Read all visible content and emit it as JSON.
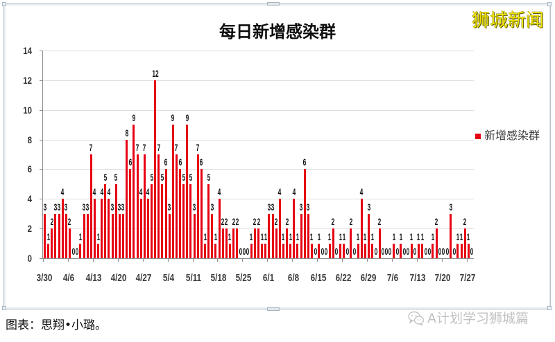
{
  "header": {
    "title": "每日新增感染群",
    "brand": "狮城新闻"
  },
  "legend": {
    "label": "新增感染群",
    "swatch_color": "#e60012"
  },
  "footer": {
    "credit": "图表：思翔•小璐。",
    "watermark": "A计划学习狮城篇",
    "watermark_icon": "wechat-icon"
  },
  "colors": {
    "bar": "#e60012",
    "brand_text": "#efe200",
    "gridline": "#dedede"
  },
  "chart_data": {
    "type": "bar",
    "title": "每日新增感染群",
    "xlabel": "",
    "ylabel": "",
    "ylim": [
      0,
      14
    ],
    "yticks": [
      0,
      2,
      4,
      6,
      8,
      10,
      12,
      14
    ],
    "grid": "horizontal",
    "legend_position": "right",
    "legend": [
      "新增感染群"
    ],
    "color": "#e60012",
    "data_labels": true,
    "xtick_interval": 7,
    "xtick_labels": [
      "3/30",
      "4/6",
      "4/13",
      "4/20",
      "4/27",
      "5/4",
      "5/11",
      "5/18",
      "5/25",
      "6/1",
      "6/8",
      "6/15",
      "6/22",
      "6/29",
      "7/6",
      "7/13",
      "7/20",
      "7/27"
    ],
    "categories": [
      "3/30",
      "3/31",
      "4/1",
      "4/2",
      "4/3",
      "4/4",
      "4/5",
      "4/6",
      "4/7",
      "4/8",
      "4/9",
      "4/10",
      "4/11",
      "4/12",
      "4/13",
      "4/14",
      "4/15",
      "4/16",
      "4/17",
      "4/18",
      "4/19",
      "4/20",
      "4/21",
      "4/22",
      "4/23",
      "4/24",
      "4/25",
      "4/26",
      "4/27",
      "4/28",
      "4/29",
      "4/30",
      "5/1",
      "5/2",
      "5/3",
      "5/4",
      "5/5",
      "5/6",
      "5/7",
      "5/8",
      "5/9",
      "5/10",
      "5/11",
      "5/12",
      "5/13",
      "5/14",
      "5/15",
      "5/16",
      "5/17",
      "5/18",
      "5/19",
      "5/20",
      "5/21",
      "5/22",
      "5/23",
      "5/24",
      "5/25",
      "5/26",
      "5/27",
      "5/28",
      "5/29",
      "5/30",
      "5/31",
      "6/1",
      "6/2",
      "6/3",
      "6/4",
      "6/5",
      "6/6",
      "6/7",
      "6/8",
      "6/9",
      "6/10",
      "6/11",
      "6/12",
      "6/13",
      "6/14",
      "6/15",
      "6/16",
      "6/17",
      "6/18",
      "6/19",
      "6/20",
      "6/21",
      "6/22",
      "6/23",
      "6/24",
      "6/25",
      "6/26",
      "6/27",
      "6/28",
      "6/29",
      "6/30",
      "7/1",
      "7/2",
      "7/3",
      "7/4",
      "7/5",
      "7/6",
      "7/7",
      "7/8",
      "7/9",
      "7/10",
      "7/11",
      "7/12",
      "7/13",
      "7/14",
      "7/15",
      "7/16",
      "7/17",
      "7/18",
      "7/19",
      "7/20",
      "7/21",
      "7/22",
      "7/23",
      "7/24",
      "7/25",
      "7/26",
      "7/27",
      "7/28"
    ],
    "values": [
      3,
      1,
      2,
      3,
      3,
      4,
      3,
      2,
      0,
      0,
      1,
      3,
      3,
      7,
      4,
      1,
      4,
      5,
      4,
      3,
      5,
      3,
      3,
      8,
      6,
      9,
      7,
      4,
      7,
      4,
      5,
      12,
      7,
      5,
      6,
      3,
      9,
      7,
      6,
      5,
      9,
      5,
      3,
      7,
      6,
      1,
      5,
      3,
      1,
      4,
      2,
      2,
      1,
      2,
      2,
      0,
      0,
      0,
      1,
      2,
      2,
      1,
      1,
      3,
      3,
      2,
      4,
      1,
      2,
      1,
      4,
      1,
      3,
      6,
      3,
      1,
      0,
      1,
      0,
      0,
      1,
      2,
      0,
      1,
      1,
      0,
      2,
      0,
      1,
      4,
      1,
      3,
      1,
      0,
      2,
      0,
      0,
      0,
      1,
      0,
      1,
      0,
      0,
      1,
      0,
      1,
      1,
      0,
      0,
      1,
      2,
      0,
      0,
      0,
      3,
      0,
      1,
      1,
      2,
      1,
      0
    ]
  }
}
